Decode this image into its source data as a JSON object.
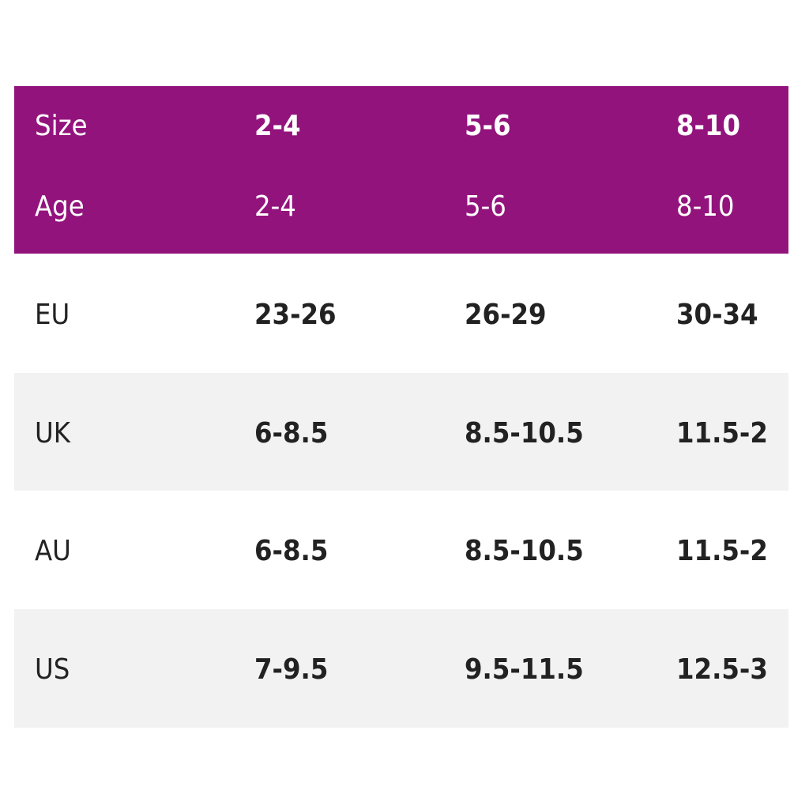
{
  "table": {
    "header": [
      [
        "Size",
        "2-4",
        "5-6",
        "8-10"
      ],
      [
        "Age",
        "2-4",
        "5-6",
        "8-10"
      ]
    ],
    "rows": [
      [
        "EU",
        "23-26",
        "26-29",
        "30-34"
      ],
      [
        "UK",
        "6-8.5",
        "8.5-10.5",
        "11.5-2"
      ],
      [
        "AU",
        "6-8.5",
        "8.5-10.5",
        "11.5-2"
      ],
      [
        "US",
        "7-9.5",
        "9.5-11.5",
        "12.5-3"
      ]
    ]
  }
}
